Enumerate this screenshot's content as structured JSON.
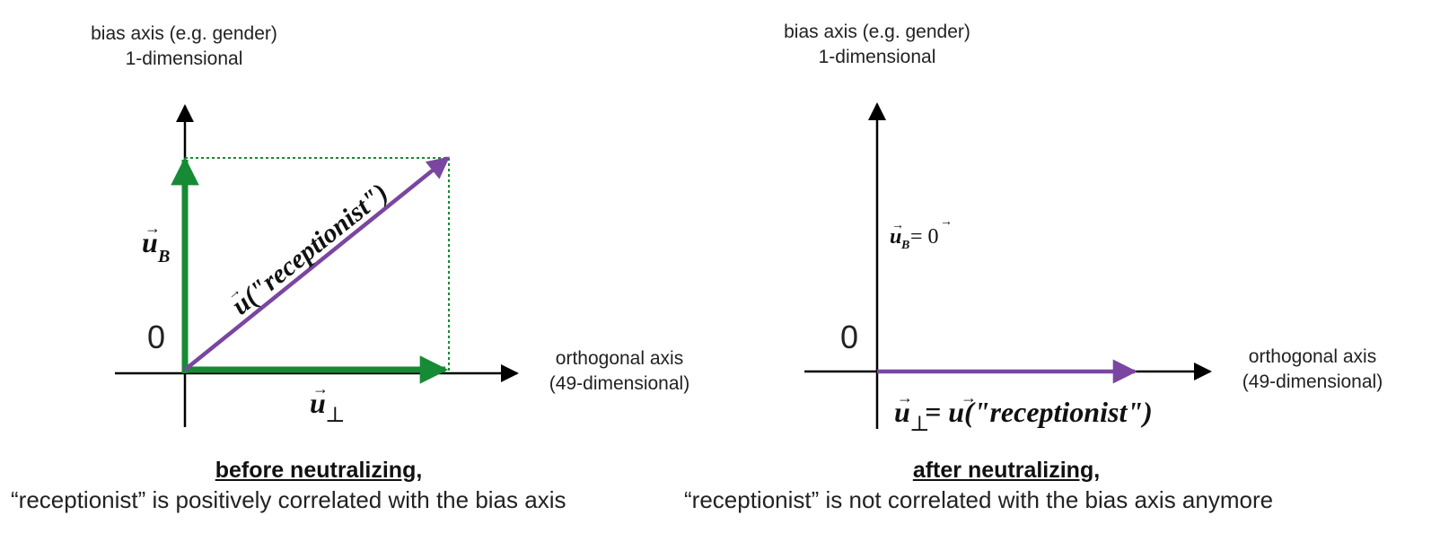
{
  "left": {
    "y_axis_label": "bias axis (e.g. gender)",
    "y_axis_sublabel": "1-dimensional",
    "x_axis_label": "orthogonal axis",
    "x_axis_sublabel": "(49-dimensional)",
    "origin": "0",
    "u_b": "u",
    "u_b_sub": "B",
    "u_perp": "u",
    "u_perp_sub": "⊥",
    "vector_label": "u(\"receptionist\")",
    "caption_title": "before neutralizing,",
    "caption_text": "“receptionist” is positively correlated with the bias axis"
  },
  "right": {
    "y_axis_label": "bias axis (e.g. gender)",
    "y_axis_sublabel": "1-dimensional",
    "x_axis_label": "orthogonal axis",
    "x_axis_sublabel": "(49-dimensional)",
    "origin": "0",
    "u_b_eq": "u",
    "u_b_eq_sub": "B",
    "u_b_eq_rhs": " = 0",
    "u_perp_eq": "u",
    "u_perp_eq_sub": "⊥",
    "u_perp_eq_rhs": " = u(\"receptionist\")",
    "caption_title": "after neutralizing,",
    "caption_text": "“receptionist” is not correlated with the bias axis anymore"
  },
  "colors": {
    "green": "#178a35",
    "purple": "#7a46a0",
    "axis": "#000000",
    "dotted": "#178a35"
  }
}
